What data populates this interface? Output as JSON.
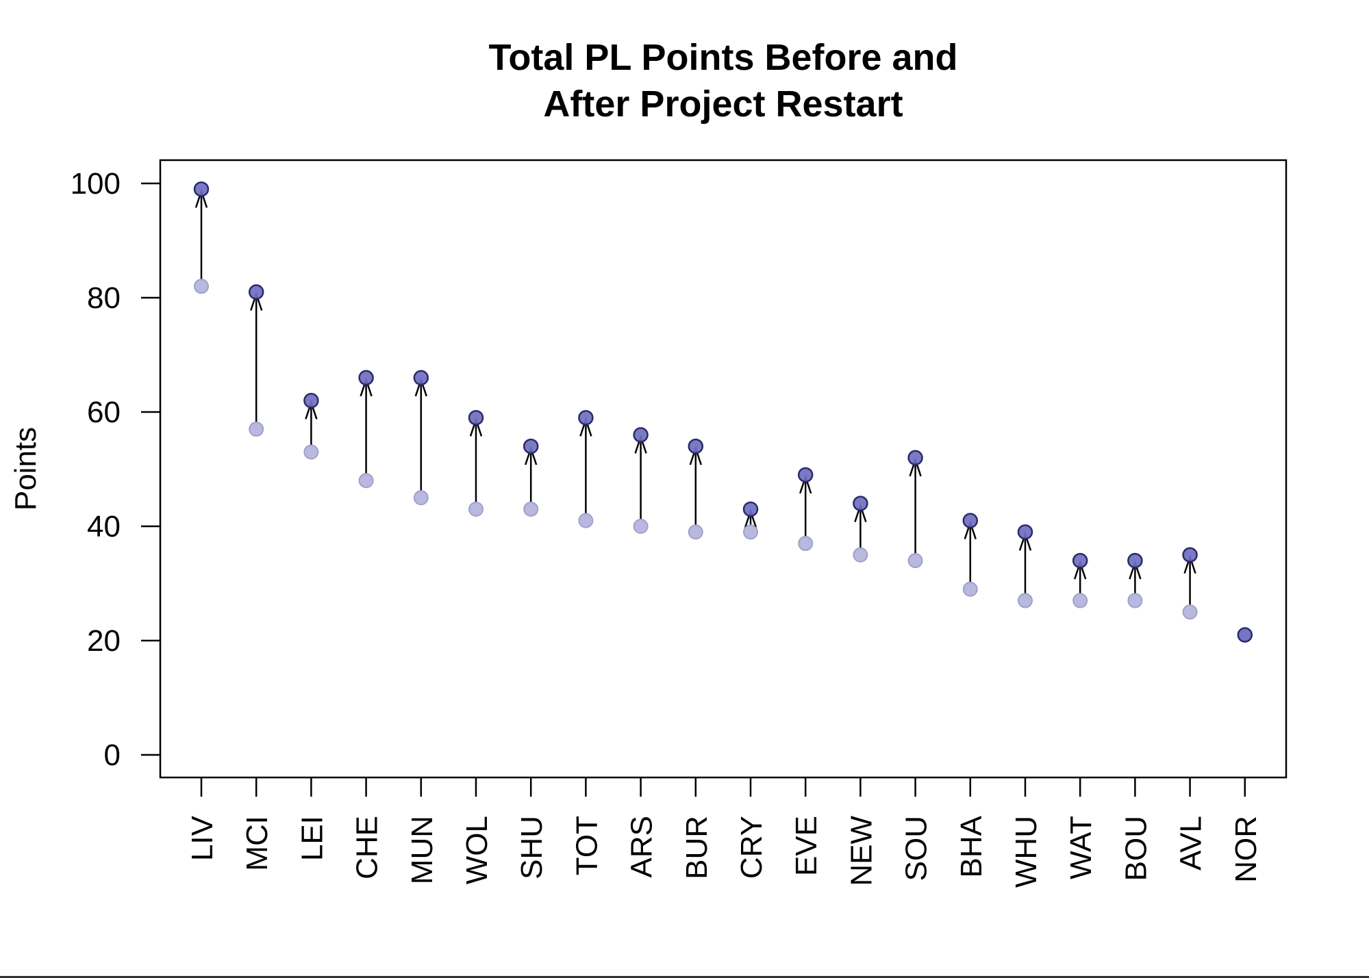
{
  "chart_data": {
    "type": "scatter",
    "title": [
      "Total PL Points Before and",
      "After Project Restart"
    ],
    "xlabel": "",
    "ylabel": "Points",
    "ylim": [
      0,
      100
    ],
    "yticks": [
      0,
      20,
      40,
      60,
      80,
      100
    ],
    "categories": [
      "LIV",
      "MCI",
      "LEI",
      "CHE",
      "MUN",
      "WOL",
      "SHU",
      "TOT",
      "ARS",
      "BUR",
      "CRY",
      "EVE",
      "NEW",
      "SOU",
      "BHA",
      "WHU",
      "WAT",
      "BOU",
      "AVL",
      "NOR"
    ],
    "series": [
      {
        "values": [
          82,
          57,
          53,
          48,
          45,
          43,
          43,
          41,
          40,
          39,
          39,
          37,
          35,
          34,
          29,
          27,
          27,
          27,
          25,
          21
        ]
      },
      {
        "values": [
          99,
          81,
          62,
          66,
          66,
          59,
          54,
          59,
          56,
          54,
          43,
          49,
          44,
          52,
          41,
          39,
          34,
          34,
          35,
          21
        ]
      }
    ],
    "colors": {
      "before": "#b9b9df",
      "after": "#6f6fc0",
      "point_edge": "#2a2a6a",
      "arrow": "#000000"
    },
    "grid": false,
    "legend": "none"
  }
}
